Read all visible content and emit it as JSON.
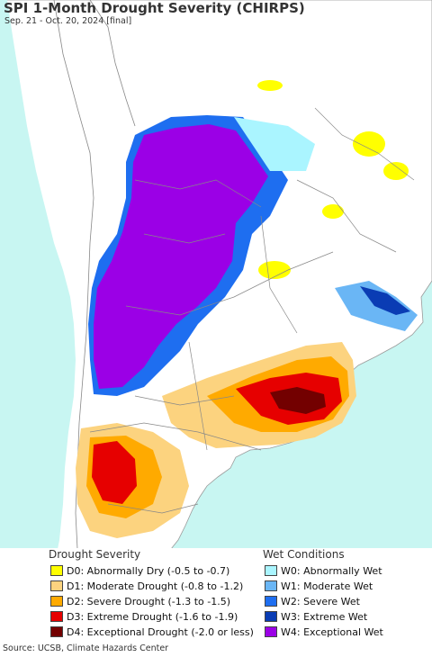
{
  "title": "SPI 1-Month Drought Severity (CHIRPS)",
  "subtitle": "Sep. 21 - Oct. 20, 2024 [final]",
  "colors": {
    "ocean": "#c8f6f2",
    "land": "#ffffff",
    "border": "#777777"
  },
  "legend": {
    "drought_heading": "Drought Severity",
    "wet_heading": "Wet Conditions",
    "drought_items": [
      {
        "label": "D0: Abnormally Dry (-0.5 to -0.7)",
        "color": "#ffff00"
      },
      {
        "label": "D1: Moderate Drought (-0.8 to -1.2)",
        "color": "#fcd37f"
      },
      {
        "label": "D2: Severe Drought (-1.3 to -1.5)",
        "color": "#ffaa00"
      },
      {
        "label": "D3: Extreme Drought (-1.6 to -1.9)",
        "color": "#e60000"
      },
      {
        "label": "D4: Exceptional Drought (-2.0 or less)",
        "color": "#730000"
      }
    ],
    "wet_items": [
      {
        "label": "W0: Abnormally Wet",
        "color": "#aaf5ff"
      },
      {
        "label": "W1: Moderate Wet",
        "color": "#6ab6f5"
      },
      {
        "label": "W2: Severe Wet",
        "color": "#1e6ef0"
      },
      {
        "label": "W3: Extreme Wet",
        "color": "#0a3cb4"
      },
      {
        "label": "W4: Exceptional Wet",
        "color": "#9b00e6"
      }
    ]
  },
  "source": "Source: UCSB, Climate Hazards Center"
}
